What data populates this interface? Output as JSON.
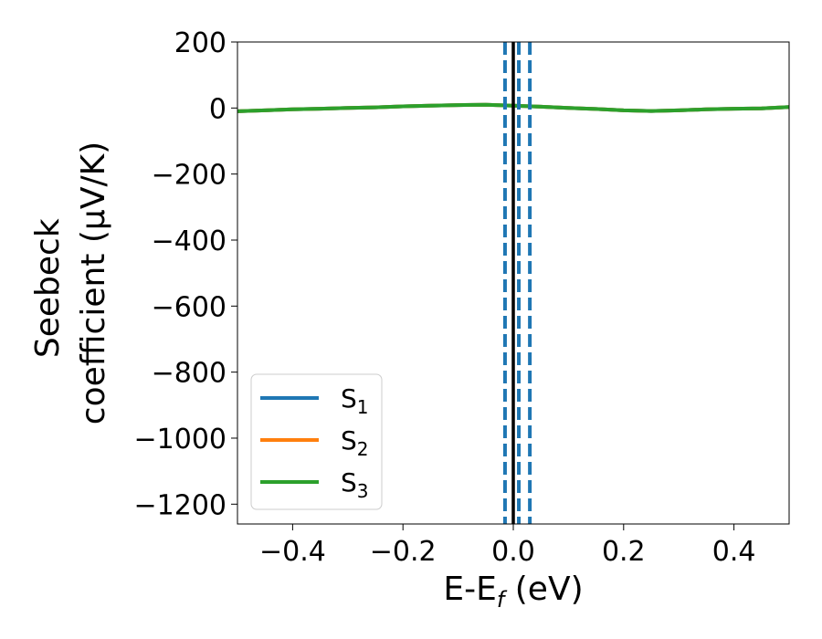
{
  "chart_data": {
    "type": "line",
    "xlabel": "E-E",
    "xlabel_sub": "f",
    "xlabel_unit": " (eV)",
    "ylabel_line1": "Seebeck",
    "ylabel_line2": "coefficient  (μV/K)",
    "xlim": [
      -0.5,
      0.5
    ],
    "ylim": [
      -1260,
      200
    ],
    "xticks": [
      -0.4,
      -0.2,
      0.0,
      0.2,
      0.4
    ],
    "xtick_labels": [
      "−0.4",
      "−0.2",
      "0.0",
      "0.2",
      "0.4"
    ],
    "yticks": [
      200,
      0,
      -200,
      -400,
      -600,
      -800,
      -1000,
      -1200
    ],
    "ytick_labels": [
      "200",
      "0",
      "−200",
      "−400",
      "−600",
      "−800",
      "−1000",
      "−1200"
    ],
    "grid": false,
    "legend_position": "lower-left",
    "series": [
      {
        "name": "S",
        "name_sub": "1",
        "color": "#1f77b4",
        "x": [
          -0.5,
          -0.45,
          -0.4,
          -0.35,
          -0.3,
          -0.25,
          -0.2,
          -0.15,
          -0.1,
          -0.05,
          0.0,
          0.05,
          0.1,
          0.15,
          0.2,
          0.25,
          0.3,
          0.35,
          0.4,
          0.45,
          0.5
        ],
        "y": [
          -10,
          -7,
          -4,
          -2,
          0,
          2,
          5,
          7,
          9,
          10,
          7,
          4,
          0,
          -3,
          -7,
          -9,
          -7,
          -4,
          -2,
          -1,
          3
        ]
      },
      {
        "name": "S",
        "name_sub": "2",
        "color": "#ff7f0e",
        "x": [
          -0.5,
          -0.45,
          -0.4,
          -0.35,
          -0.3,
          -0.25,
          -0.2,
          -0.15,
          -0.1,
          -0.05,
          0.0,
          0.05,
          0.1,
          0.15,
          0.2,
          0.25,
          0.3,
          0.35,
          0.4,
          0.45,
          0.5
        ],
        "y": [
          -10,
          -7,
          -4,
          -2,
          0,
          2,
          5,
          7,
          9,
          10,
          7,
          4,
          0,
          -3,
          -7,
          -9,
          -7,
          -4,
          -2,
          -1,
          3
        ]
      },
      {
        "name": "S",
        "name_sub": "3",
        "color": "#2ca02c",
        "x": [
          -0.5,
          -0.45,
          -0.4,
          -0.35,
          -0.3,
          -0.25,
          -0.2,
          -0.15,
          -0.1,
          -0.05,
          0.0,
          0.05,
          0.1,
          0.15,
          0.2,
          0.25,
          0.3,
          0.35,
          0.4,
          0.45,
          0.5
        ],
        "y": [
          -10,
          -7,
          -4,
          -2,
          0,
          2,
          5,
          7,
          9,
          10,
          7,
          4,
          0,
          -3,
          -7,
          -9,
          -7,
          -4,
          -2,
          -1,
          3
        ]
      }
    ],
    "vertical_lines": [
      {
        "x": 0.0,
        "style": "solid",
        "color": "#000000"
      },
      {
        "x": -0.015,
        "style": "dashed",
        "color": "#1f77b4"
      },
      {
        "x": 0.01,
        "style": "dashed",
        "color": "#1f77b4"
      },
      {
        "x": 0.03,
        "style": "dashed",
        "color": "#1f77b4"
      }
    ]
  }
}
